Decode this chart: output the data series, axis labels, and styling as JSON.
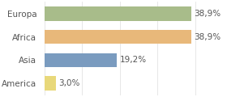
{
  "categories": [
    "America",
    "Asia",
    "Africa",
    "Europa"
  ],
  "values": [
    3.0,
    19.2,
    38.9,
    38.9
  ],
  "labels": [
    "3,0%",
    "19,2%",
    "38,9%",
    "38,9%"
  ],
  "bar_colors": [
    "#e8d87a",
    "#7a9bbf",
    "#e8b87a",
    "#a8bc8a"
  ],
  "background_color": "#ffffff",
  "xlim": [
    0,
    48
  ],
  "bar_height": 0.62,
  "label_fontsize": 7.5,
  "tick_fontsize": 7.5
}
